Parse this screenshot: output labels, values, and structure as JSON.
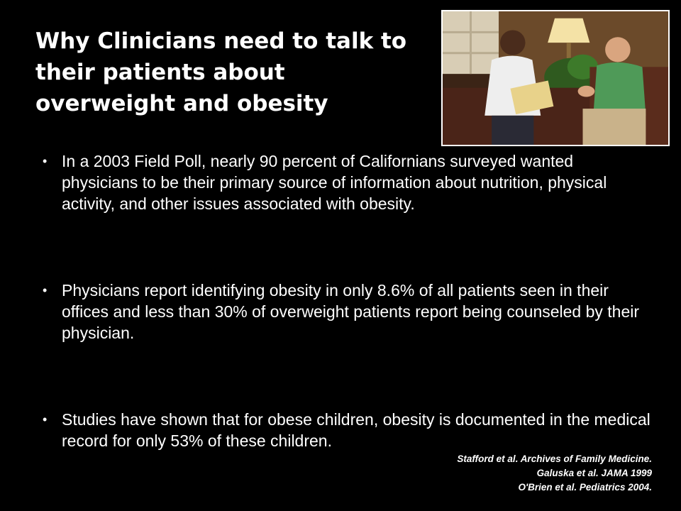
{
  "slide": {
    "title": "Why Clinicians need to talk to their patients about overweight and obesity",
    "bullets": [
      {
        "text": "In a 2003 Field Poll, nearly 90 percent of  Californians surveyed wanted physicians to be their primary source of information about nutrition, physical activity, and other issues associated with obesity."
      },
      {
        "text": "Physicians report identifying obesity in only 8.6% of all patients seen in their offices and less than 30% of overweight patients report being counseled by their physician."
      },
      {
        "text": "Studies have shown that for obese children, obesity is documented in the medical record for only 53% of these children."
      }
    ],
    "references": [
      "Stafford et al. Archives of Family Medicine.",
      "Galuska et al.  JAMA 1999",
      "O'Brien et al.  Pediatrics 2004."
    ],
    "bullet_glyph": "•"
  }
}
